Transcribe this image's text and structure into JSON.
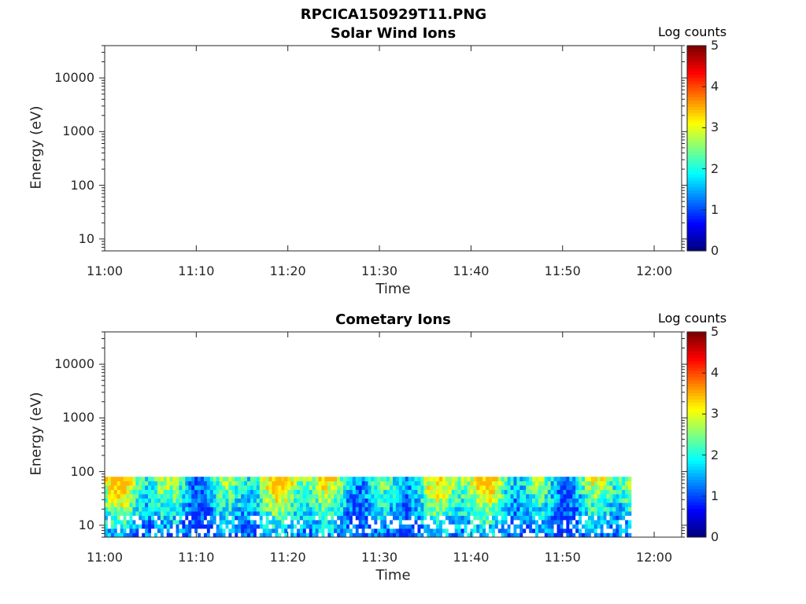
{
  "figure": {
    "title": "RPCICA150929T11.PNG"
  },
  "chart_data": [
    {
      "type": "heatmap",
      "title": "Solar Wind Ions",
      "xlabel": "Time",
      "ylabel": "Energy (eV)",
      "x_ticks": [
        "11:00",
        "11:10",
        "11:20",
        "11:30",
        "11:40",
        "11:50",
        "12:00"
      ],
      "xlim": [
        "11:00",
        "12:03"
      ],
      "y_scale": "log",
      "y_ticks": [
        10,
        100,
        1000,
        10000
      ],
      "ylim": [
        6,
        40000
      ],
      "colorbar": {
        "label": "Log counts",
        "ticks": [
          0,
          1,
          2,
          3,
          4,
          5
        ],
        "range": [
          0,
          5
        ],
        "colormap": "jet"
      },
      "data_present": false
    },
    {
      "type": "heatmap",
      "title": "Cometary Ions",
      "xlabel": "Time",
      "ylabel": "Energy (eV)",
      "x_ticks": [
        "11:00",
        "11:10",
        "11:20",
        "11:30",
        "11:40",
        "11:50",
        "12:00"
      ],
      "xlim": [
        "11:00",
        "12:03"
      ],
      "y_scale": "log",
      "y_ticks": [
        10,
        100,
        1000,
        10000
      ],
      "ylim": [
        6,
        40000
      ],
      "colorbar": {
        "label": "Log counts",
        "ticks": [
          0,
          1,
          2,
          3,
          4,
          5
        ],
        "range": [
          0,
          5
        ],
        "colormap": "jet"
      },
      "data_present": true,
      "data_time_range": [
        "11:00",
        "11:57:30"
      ],
      "data_energy_range": [
        6,
        80
      ],
      "typical_log_counts": [
        0.8,
        2.8
      ]
    }
  ]
}
